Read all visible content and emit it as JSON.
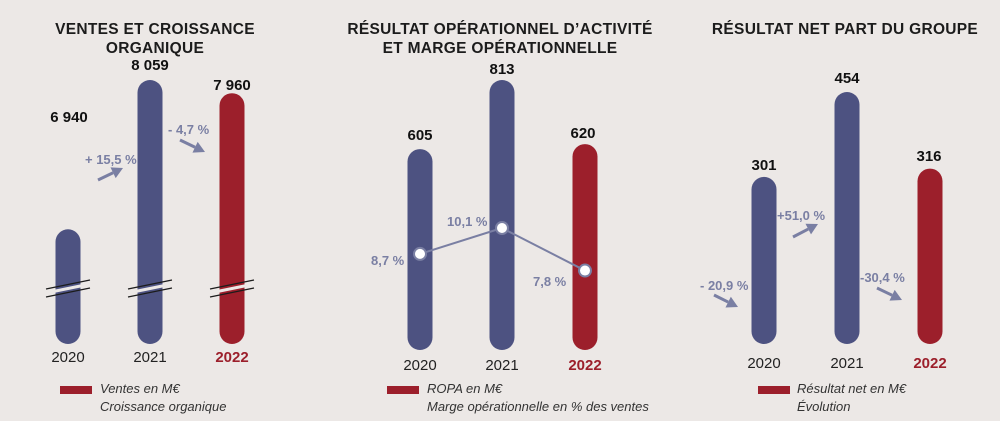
{
  "colors": {
    "past": "#4d5281",
    "current": "#9c1f2b",
    "arrow": "#7a7fa3",
    "background": "#ece8e6"
  },
  "chart_data": [
    {
      "type": "bar",
      "title": "VENTES ET CROISSANCE ORGANIQUE",
      "categories": [
        "2020",
        "2021",
        "2022"
      ],
      "series": [
        {
          "name": "Ventes en M€",
          "values": [
            6940,
            8059,
            7960
          ],
          "labels": [
            "6 940",
            "8 059",
            "7 960"
          ]
        },
        {
          "name": "Croissance organique",
          "labels": [
            "+ 15,5 %",
            "- 4,7 %"
          ]
        }
      ],
      "axis_break": true
    },
    {
      "type": "bar",
      "title": "RÉSULTAT OPÉRATIONNEL D’ACTIVITÉ ET MARGE OPÉRATIONNELLE",
      "categories": [
        "2020",
        "2021",
        "2022"
      ],
      "series": [
        {
          "name": "ROPA en M€",
          "values": [
            605,
            813,
            620
          ],
          "labels": [
            "605",
            "813",
            "620"
          ]
        },
        {
          "name": "Marge opérationnelle en % des ventes",
          "values": [
            8.7,
            10.1,
            7.8
          ],
          "labels": [
            "8,7 %",
            "10,1 %",
            "7,8 %"
          ]
        }
      ]
    },
    {
      "type": "bar",
      "title": "RÉSULTAT NET PART DU GROUPE",
      "categories": [
        "2020",
        "2021",
        "2022"
      ],
      "series": [
        {
          "name": "Résultat net en M€",
          "values": [
            301,
            454,
            316
          ],
          "labels": [
            "301",
            "454",
            "316"
          ]
        },
        {
          "name": "Évolution",
          "labels": [
            "- 20,9 %",
            "+51,0 %",
            "-30,4 %"
          ]
        }
      ]
    }
  ],
  "panels": [
    {
      "title_line1": "VENTES ET CROISSANCE",
      "title_line2": "ORGANIQUE",
      "legend": [
        "Ventes en M€",
        "Croissance organique"
      ]
    },
    {
      "title_line1": "RÉSULTAT OPÉRATIONNEL D’ACTIVITÉ",
      "title_line2": "ET MARGE OPÉRATIONNELLE",
      "legend": [
        "ROPA en M€",
        "Marge opérationnelle en % des ventes"
      ]
    },
    {
      "title_line1": "RÉSULTAT NET PART DU GROUPE",
      "title_line2": "",
      "legend": [
        "Résultat net en M€",
        "Évolution"
      ]
    }
  ]
}
